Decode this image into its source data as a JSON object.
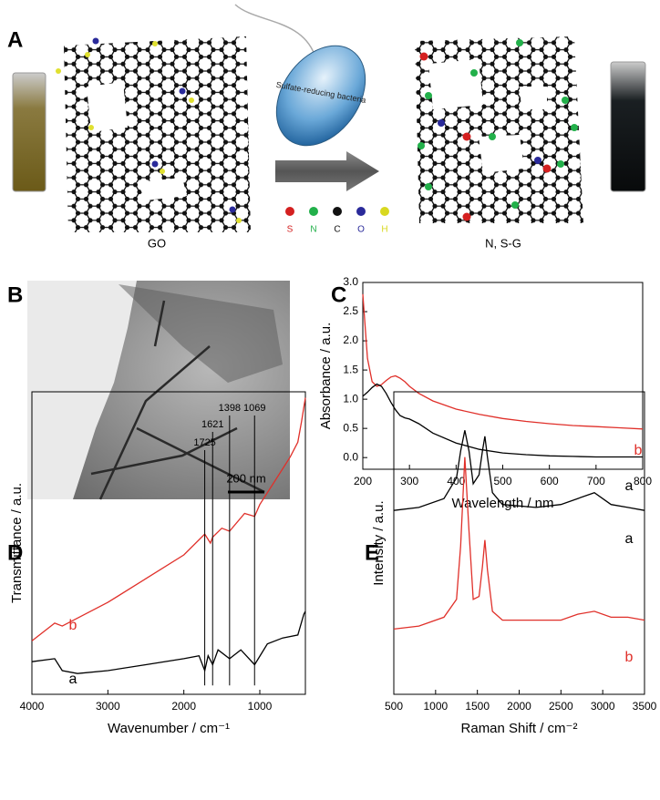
{
  "panel_labels": [
    "A",
    "B",
    "C",
    "D",
    "E"
  ],
  "scheme": {
    "bacteria": "Sulfate-reducing bacteria",
    "left_label": "GO",
    "right_label": "N, S-G",
    "atoms": [
      {
        "symbol": "S",
        "color": "#d42020"
      },
      {
        "symbol": "N",
        "color": "#22b04a"
      },
      {
        "symbol": "C",
        "color": "#111111"
      },
      {
        "symbol": "O",
        "color": "#2a2a9a"
      },
      {
        "symbol": "H",
        "color": "#d8d820"
      }
    ]
  },
  "tem": {
    "scale_bar": "200 nm"
  },
  "chart_data": [
    {
      "type": "line",
      "xlabel": "Wavelength / nm",
      "ylabel": "Absorbance / a.u.",
      "x": [
        200,
        210,
        220,
        230,
        240,
        250,
        260,
        270,
        280,
        290,
        300,
        320,
        350,
        400,
        450,
        500,
        550,
        600,
        650,
        700,
        750,
        800
      ],
      "series": [
        {
          "name": "b",
          "color": "#e0302a",
          "values": [
            2.8,
            1.7,
            1.3,
            1.22,
            1.25,
            1.32,
            1.38,
            1.4,
            1.36,
            1.3,
            1.22,
            1.1,
            0.97,
            0.83,
            0.74,
            0.67,
            0.62,
            0.58,
            0.55,
            0.53,
            0.51,
            0.49
          ]
        },
        {
          "name": "a",
          "color": "#000000",
          "values": [
            1.05,
            1.12,
            1.2,
            1.26,
            1.22,
            1.1,
            0.95,
            0.82,
            0.72,
            0.68,
            0.66,
            0.58,
            0.42,
            0.25,
            0.14,
            0.08,
            0.05,
            0.03,
            0.02,
            0.01,
            0.01,
            0.01
          ]
        }
      ],
      "xlim": [
        200,
        800
      ],
      "xticks": [
        200,
        300,
        400,
        500,
        600,
        700,
        800
      ],
      "ylim": [
        -0.2,
        3.0
      ],
      "yticks": [
        {
          "value": 0,
          "label": "0.0"
        },
        {
          "value": 0.5,
          "label": "0.5"
        },
        {
          "value": 1,
          "label": "1.0"
        },
        {
          "value": 1.5,
          "label": "1.5"
        },
        {
          "value": 2,
          "label": "2.0"
        },
        {
          "value": 2.5,
          "label": "2.5"
        },
        {
          "value": 3,
          "label": "3.0"
        }
      ]
    },
    {
      "type": "line",
      "xlabel": "Wavenumber / cm⁻¹",
      "ylabel": "Transmittance / a.u.",
      "series": [
        {
          "name": "b",
          "color": "#e0302a",
          "x": [
            4000,
            3700,
            3600,
            3000,
            2500,
            2000,
            1725,
            1650,
            1621,
            1500,
            1398,
            1200,
            1069,
            1000,
            800,
            600,
            500,
            450,
            400
          ],
          "values": [
            1.8,
            2.4,
            2.3,
            3.1,
            3.9,
            4.7,
            5.4,
            5.1,
            5.3,
            5.6,
            5.5,
            6.1,
            6.0,
            6.4,
            7.2,
            8.0,
            8.5,
            9.2,
            10.0
          ]
        },
        {
          "name": "a",
          "color": "#000000",
          "x": [
            4000,
            3700,
            3600,
            3400,
            3000,
            2500,
            2000,
            1800,
            1725,
            1680,
            1621,
            1550,
            1398,
            1250,
            1069,
            900,
            700,
            500,
            420,
            400
          ],
          "values": [
            1.1,
            1.2,
            0.8,
            0.7,
            0.8,
            1.0,
            1.2,
            1.3,
            0.8,
            1.3,
            1.0,
            1.5,
            1.2,
            1.5,
            1.0,
            1.7,
            1.9,
            2.0,
            2.7,
            2.8
          ]
        }
      ],
      "peak_lines": [
        1725,
        1621,
        1398,
        1069
      ],
      "xlim": [
        4000,
        400
      ],
      "xticks": [
        4000,
        3000,
        2000,
        1000
      ],
      "ylim": [
        0,
        10.2
      ]
    },
    {
      "type": "line",
      "xlabel": "Raman Shift / cm⁻²",
      "ylabel": "Intensity / a.u.",
      "series": [
        {
          "name": "a",
          "color": "#000000",
          "x": [
            500,
            800,
            1100,
            1250,
            1300,
            1350,
            1400,
            1450,
            1520,
            1560,
            1590,
            1620,
            1680,
            1800,
            2200,
            2500,
            2700,
            2900,
            3100,
            3300,
            3500
          ],
          "values": [
            6.2,
            6.3,
            6.6,
            7.3,
            8.2,
            8.9,
            8.2,
            7.1,
            7.4,
            8.2,
            8.7,
            8.0,
            6.8,
            6.4,
            6.3,
            6.4,
            6.6,
            6.8,
            6.4,
            6.3,
            6.2
          ]
        },
        {
          "name": "b",
          "color": "#e0302a",
          "x": [
            500,
            800,
            1100,
            1250,
            1300,
            1350,
            1400,
            1450,
            1520,
            1560,
            1590,
            1620,
            1680,
            1800,
            2200,
            2500,
            2700,
            2900,
            3100,
            3300,
            3500
          ],
          "values": [
            2.2,
            2.3,
            2.6,
            3.2,
            5.0,
            8.0,
            5.5,
            3.2,
            3.3,
            4.3,
            5.2,
            4.2,
            2.8,
            2.5,
            2.5,
            2.5,
            2.7,
            2.8,
            2.6,
            2.6,
            2.5
          ]
        }
      ],
      "xlim": [
        500,
        3500
      ],
      "xticks": [
        500,
        1000,
        1500,
        2000,
        2500,
        3000,
        3500
      ],
      "ylim": [
        0,
        10.2
      ]
    }
  ]
}
